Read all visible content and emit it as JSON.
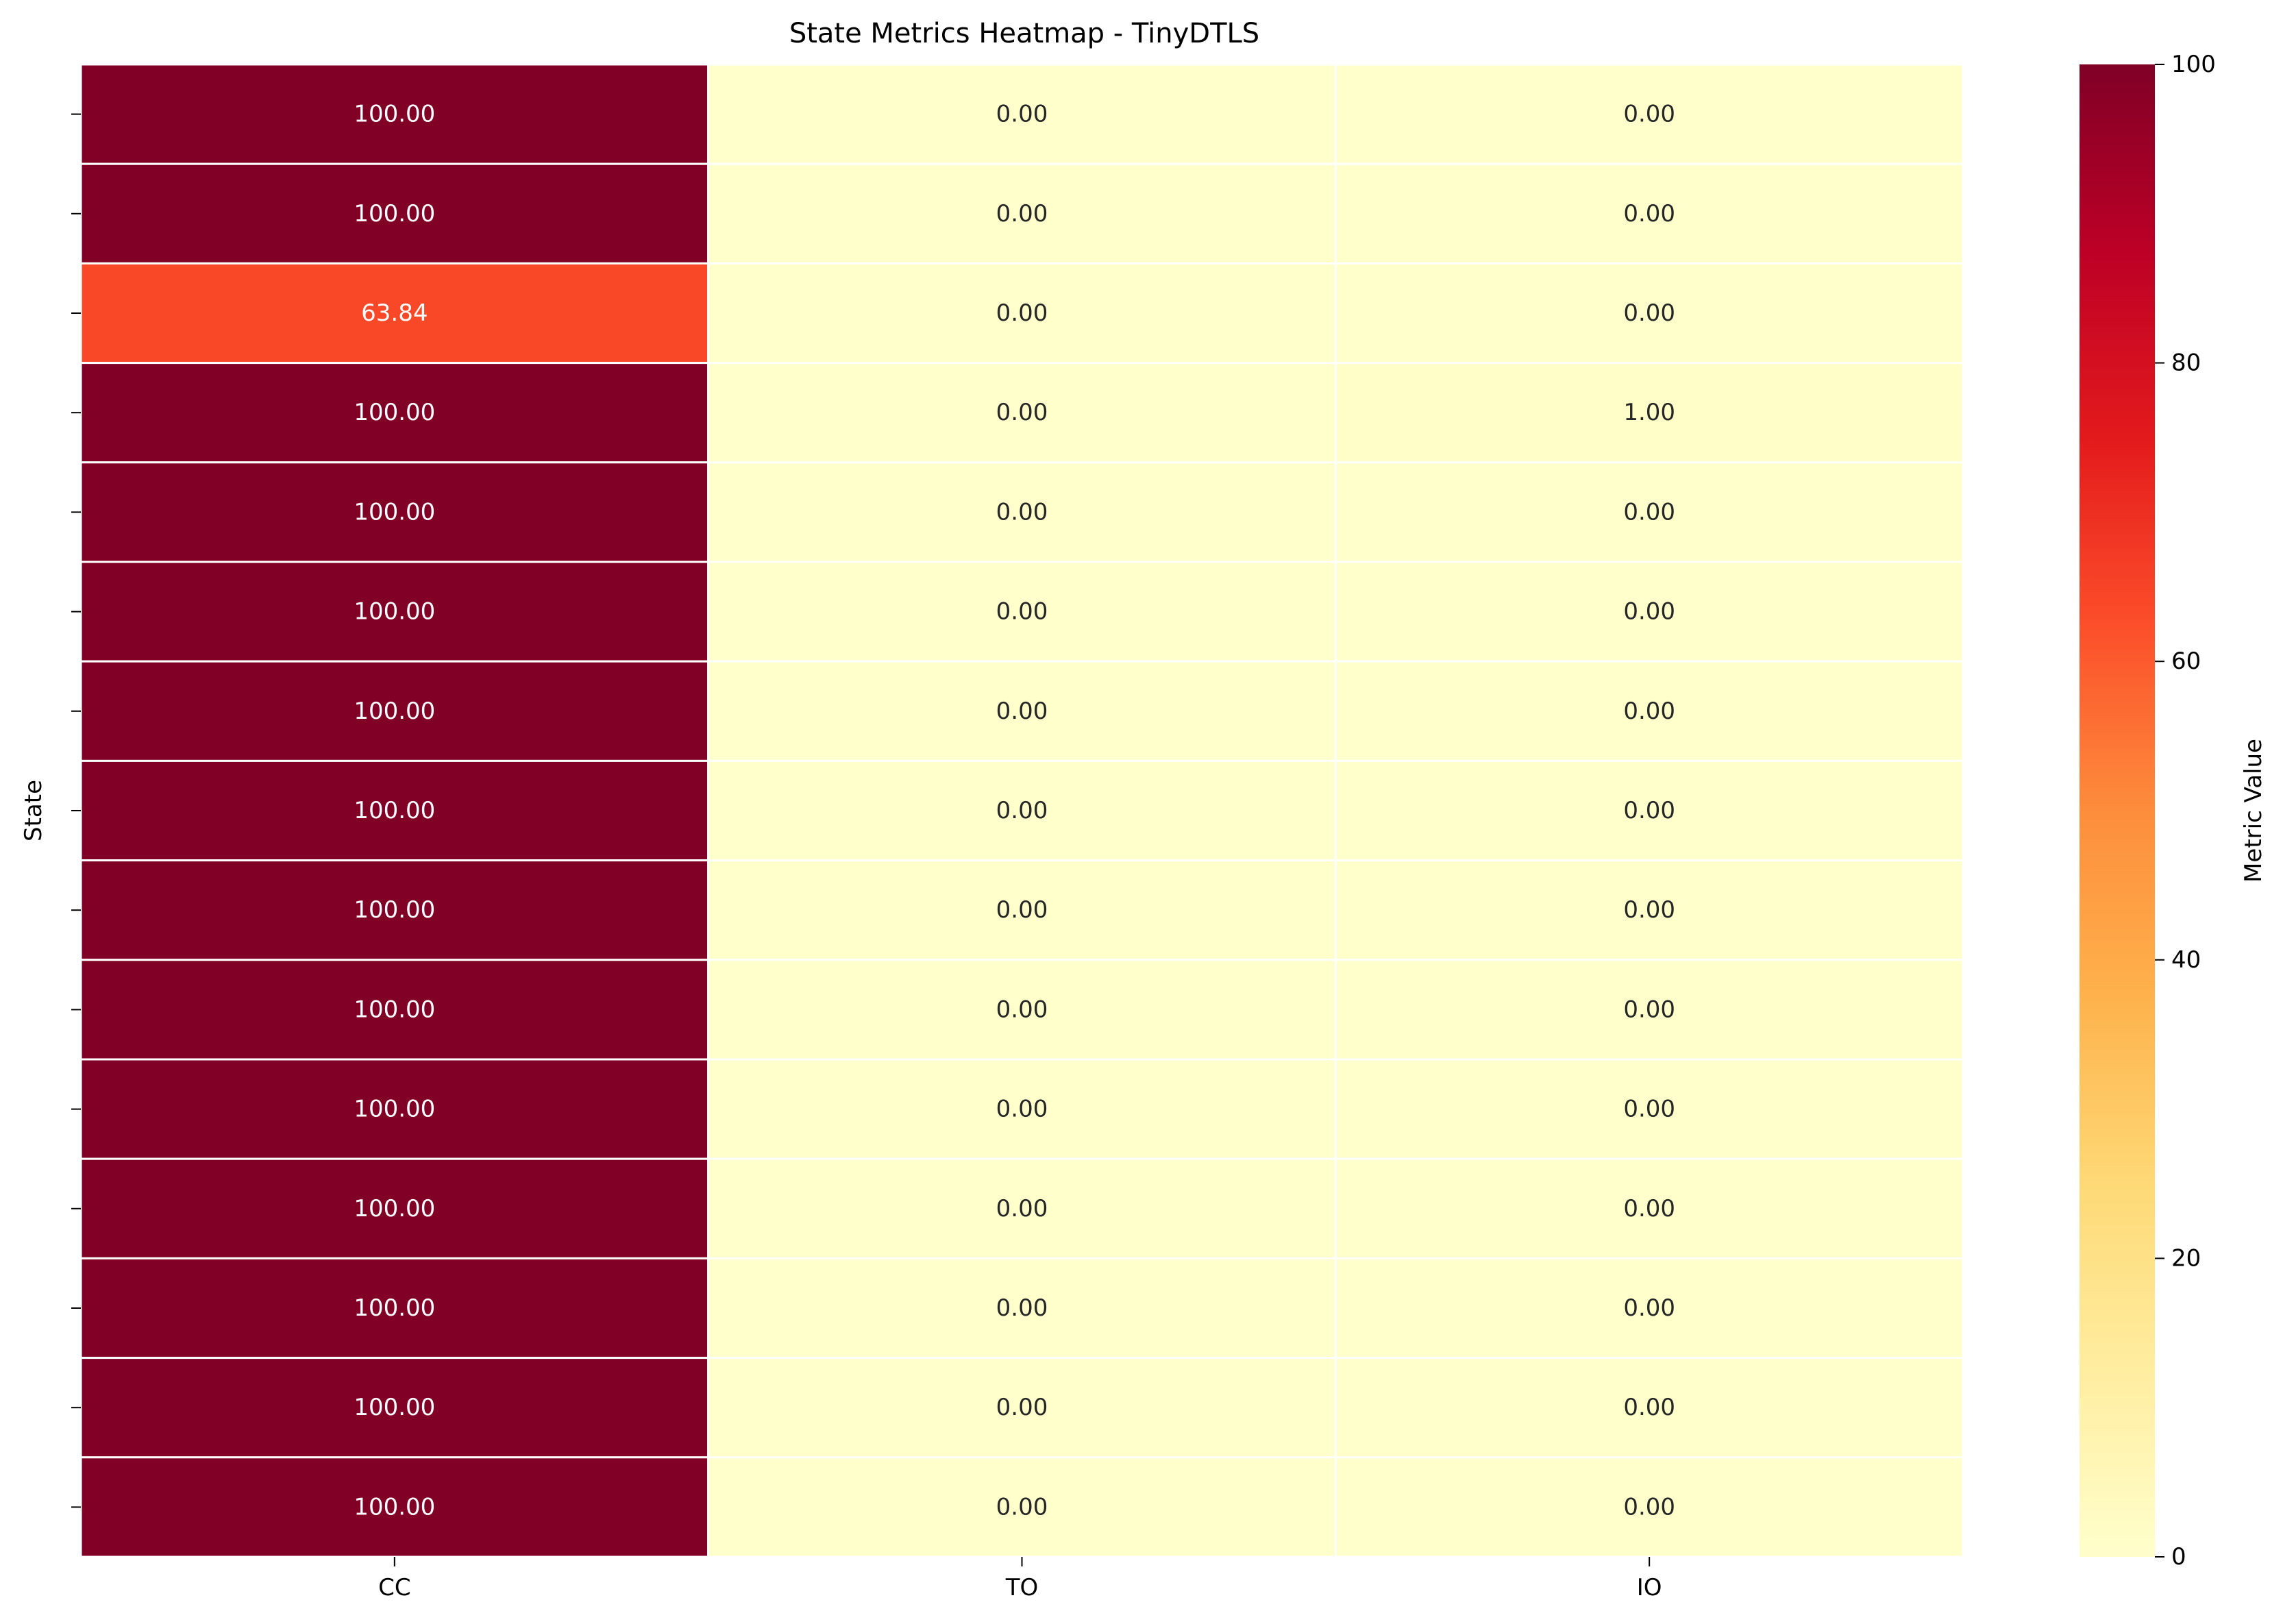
{
  "chart_data": {
    "type": "heatmap",
    "title": "State Metrics Heatmap - TinyDTLS",
    "xlabel": "",
    "ylabel": "State",
    "columns": [
      "CC",
      "TO",
      "IO"
    ],
    "row_tick_labels": [
      "",
      "",
      "",
      "",
      "",
      "",
      "",
      "",
      "",
      "",
      "",
      "",
      "",
      "",
      ""
    ],
    "values": [
      [
        100.0,
        0.0,
        0.0
      ],
      [
        100.0,
        0.0,
        0.0
      ],
      [
        63.84,
        0.0,
        0.0
      ],
      [
        100.0,
        0.0,
        1.0
      ],
      [
        100.0,
        0.0,
        0.0
      ],
      [
        100.0,
        0.0,
        0.0
      ],
      [
        100.0,
        0.0,
        0.0
      ],
      [
        100.0,
        0.0,
        0.0
      ],
      [
        100.0,
        0.0,
        0.0
      ],
      [
        100.0,
        0.0,
        0.0
      ],
      [
        100.0,
        0.0,
        0.0
      ],
      [
        100.0,
        0.0,
        0.0
      ],
      [
        100.0,
        0.0,
        0.0
      ],
      [
        100.0,
        0.0,
        0.0
      ],
      [
        100.0,
        0.0,
        0.0
      ]
    ],
    "value_format_decimals": 2,
    "colormap": "YlOrRd",
    "colorbar": {
      "label": "Metric Value",
      "range": [
        0,
        100
      ],
      "ticks": [
        0,
        20,
        40,
        60,
        80,
        100
      ]
    },
    "cell_gridline_color": "#ffffff"
  }
}
